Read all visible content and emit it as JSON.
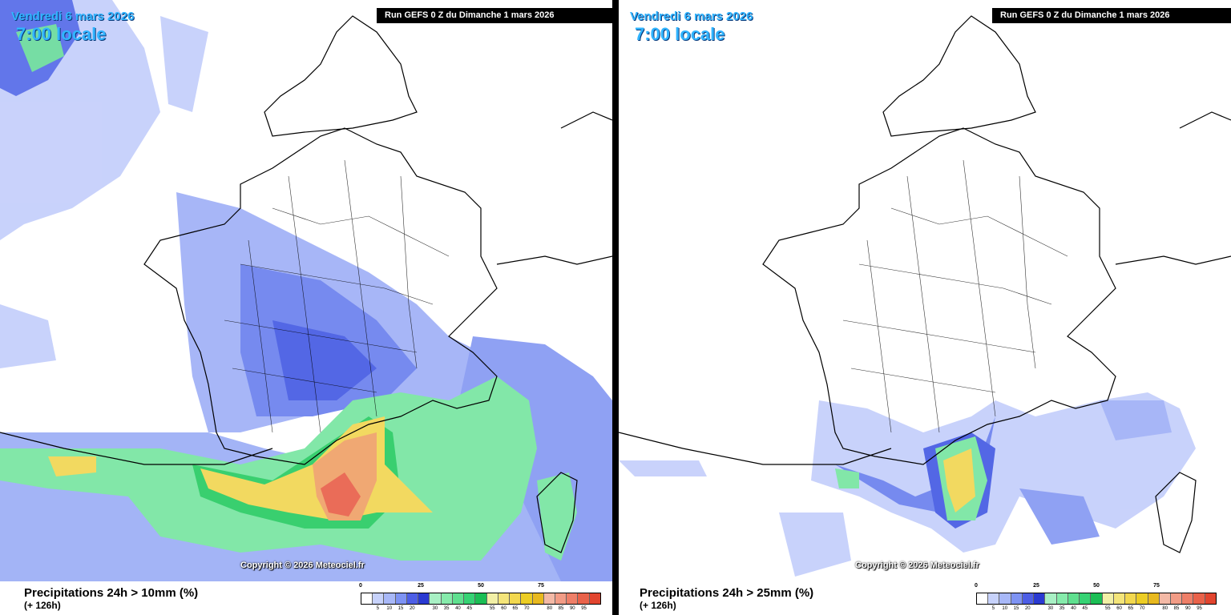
{
  "panels": [
    {
      "date": "Vendredi 6 mars 2026",
      "time": "7:00 locale",
      "run": "Run GEFS 0 Z du Dimanche 1 mars 2026",
      "copyright": "Copyright © 2026 Meteociel.fr",
      "title": "Precipitations 24h > 10mm (%)",
      "subtitle": "(+ 126h)"
    },
    {
      "date": "Vendredi 6 mars 2026",
      "time": "7:00 locale",
      "run": "Run GEFS 0 Z du Dimanche 1 mars 2026",
      "copyright": "Copyright © 2026 Meteociel.fr",
      "title": "Precipitations 24h > 25mm (%)",
      "subtitle": "(+ 126h)"
    }
  ],
  "scale": {
    "major": [
      "0",
      "25",
      "50",
      "75"
    ],
    "minor": [
      "5",
      "10",
      "15",
      "20",
      "30",
      "35",
      "40",
      "45",
      "55",
      "60",
      "65",
      "70",
      "80",
      "85",
      "90",
      "95"
    ],
    "colors": [
      "#ffffff",
      "#c7d2fb",
      "#a8b8f8",
      "#7e93f3",
      "#4d5ee6",
      "#2a3ad2",
      "#a8f0c4",
      "#86ebab",
      "#5fe08f",
      "#36d374",
      "#1bbe55",
      "#f2f0a6",
      "#f4e57a",
      "#f2d84f",
      "#eccd24",
      "#e8b91f",
      "#f3b9a6",
      "#f29c86",
      "#ee7f68",
      "#e9624a",
      "#e2452f"
    ]
  },
  "colors": {
    "blue_light": "#c6d0fb",
    "blue_mid": "#8a9cf3",
    "blue_dark": "#3b4fe0",
    "green_light": "#a3efc3",
    "green_mid": "#3fd57a",
    "yellow": "#f2d758",
    "orange": "#f0a46c",
    "red": "#e96550",
    "date_text": "#31b4ff"
  }
}
